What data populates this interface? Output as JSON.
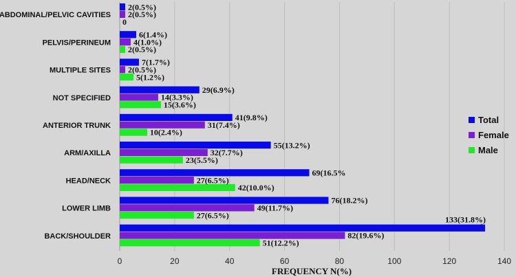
{
  "chart_data": {
    "type": "bar",
    "orientation": "horizontal",
    "categories": [
      "ABDOMINAL/PELVIC CAVITIES",
      "PELVIS/PERINEUM",
      "MULTIPLE SITES",
      "NOT SPECIFIED",
      "ANTERIOR TRUNK",
      "ARM/AXILLA",
      "HEAD/NECK",
      "LOWER LIMB",
      "BACK/SHOULDER"
    ],
    "series": [
      {
        "name": "Total",
        "color": "#0a0ae6",
        "values": [
          2,
          6,
          7,
          29,
          41,
          55,
          69,
          76,
          133
        ],
        "labels": [
          "2(0.5%)",
          "6(1.4%)",
          "7(1.7%)",
          "29(6.9%)",
          "41(9.8%)",
          "55(13.2%)",
          "69(16.5%",
          "76(18.2%)",
          "133(31.8%)"
        ]
      },
      {
        "name": "Female",
        "color": "#7b1fd2",
        "values": [
          2,
          4,
          2,
          14,
          31,
          32,
          27,
          49,
          82
        ],
        "labels": [
          "2(0.5%)",
          "4(1.0%)",
          "2(0.5%)",
          "14(3.3%)",
          "31(7.4%)",
          "32(7.7%)",
          "27(6.5%)",
          "49(11.7%)",
          "82(19.6%)"
        ]
      },
      {
        "name": "Male",
        "color": "#22e82a",
        "values": [
          0,
          2,
          5,
          15,
          10,
          23,
          42,
          27,
          51
        ],
        "labels": [
          "0",
          "2(0.5%)",
          "5(1.2%)",
          "15(3.6%)",
          "10(2.4%)",
          "23(5.5%)",
          "42(10.0%)",
          "27(6.5%)",
          "51(12.2%)"
        ]
      }
    ],
    "xlabel": "FREQUENCY N(%)",
    "ylabel": "",
    "xlim": [
      0,
      140
    ],
    "xticks": [
      0,
      20,
      40,
      60,
      80,
      100,
      120,
      140
    ],
    "grid": true,
    "legend": "right"
  }
}
